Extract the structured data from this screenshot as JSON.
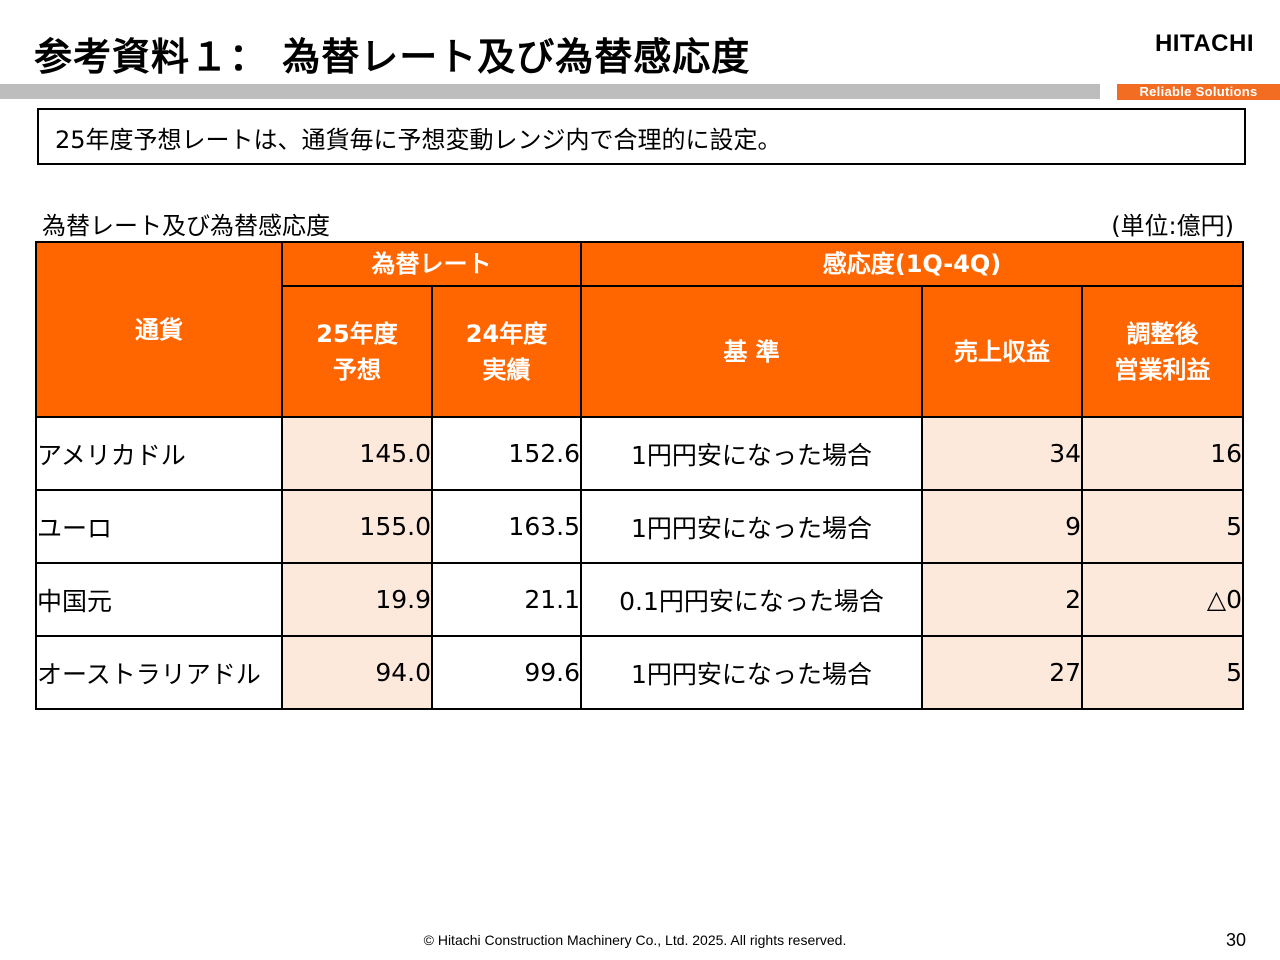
{
  "header": {
    "title": "参考資料１： 為替レート及び為替感応度",
    "logo": "HITACHI",
    "tagline": "Reliable Solutions"
  },
  "summary": "25年度予想レートは、通貨毎に予想変動レンジ内で合理的に設定。",
  "table": {
    "caption": "為替レート及び為替感応度",
    "unit": "(単位:億円)",
    "headers": {
      "currency": "通貨",
      "rate_group": "為替レート",
      "sensitivity_group": "感応度(1Q-4Q)",
      "fy25_line1": "25年度",
      "fy25_line2": "予想",
      "fy24_line1": "24年度",
      "fy24_line2": "実績",
      "basis": "基 準",
      "revenue": "売上収益",
      "op_line1": "調整後",
      "op_line2": "営業利益"
    },
    "rows": [
      {
        "currency": "アメリカドル",
        "fy25": "145.0",
        "fy24": "152.6",
        "basis": "1円円安になった場合",
        "revenue": "34",
        "op": "16"
      },
      {
        "currency": "ユーロ",
        "fy25": "155.0",
        "fy24": "163.5",
        "basis": "1円円安になった場合",
        "revenue": "9",
        "op": "5"
      },
      {
        "currency": "中国元",
        "fy25": "19.9",
        "fy24": "21.1",
        "basis": "0.1円円安になった場合",
        "revenue": "2",
        "op": "△0"
      },
      {
        "currency": "オーストラリアドル",
        "fy25": "94.0",
        "fy24": "99.6",
        "basis": "1円円安になった場合",
        "revenue": "27",
        "op": "5"
      }
    ]
  },
  "footer": {
    "copyright": "© Hitachi Construction Machinery Co., Ltd. 2025. All rights reserved.",
    "page": "30"
  }
}
